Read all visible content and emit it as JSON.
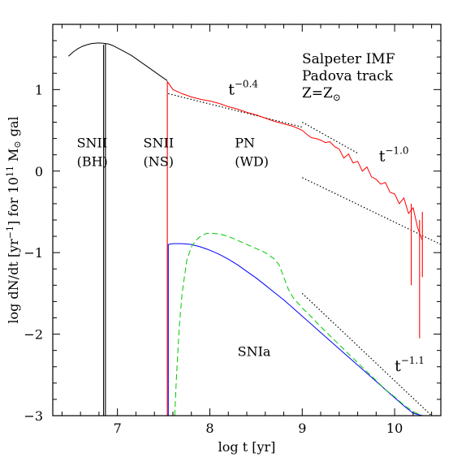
{
  "chart_data": {
    "type": "line",
    "xlabel": "log t [yr]",
    "ylabel_parts": {
      "main": "log dN/dt [yr",
      "exp": "−1",
      "mid": "] for 10",
      "exp2": "11",
      "unit": " M",
      "sun": "⊙",
      "tail": " gal"
    },
    "xlim": [
      6.3,
      10.5
    ],
    "ylim": [
      -3,
      1.8
    ],
    "x_ticks": [
      7,
      8,
      9,
      10
    ],
    "y_ticks": [
      -3,
      -2,
      -1,
      0,
      1
    ],
    "y_tick_labels": [
      "−3",
      "−2",
      "−1",
      "0",
      "1"
    ],
    "notes": [
      "Salpeter IMF",
      "Padova track"
    ],
    "metallicity": {
      "base": "Z=Z",
      "sun": "⊙"
    },
    "region_labels": [
      {
        "line1": "SNII",
        "line2": "(BH)",
        "x": 6.56,
        "y1": 0.29,
        "y2": 0.06
      },
      {
        "line1": "SNII",
        "line2": "(NS)",
        "x": 7.28,
        "y1": 0.29,
        "y2": 0.06
      },
      {
        "line1": "PN",
        "line2": "(WD)",
        "x": 8.27,
        "y1": 0.29,
        "y2": 0.06
      }
    ],
    "powerlaw_labels": [
      {
        "base": "t",
        "exp": "−0.4",
        "x": 8.2,
        "y": 0.94
      },
      {
        "base": "t",
        "exp": "−1.0",
        "x": 9.83,
        "y": 0.12
      },
      {
        "base": "t",
        "exp": "−1.1",
        "x": 10.0,
        "y": -2.45
      }
    ],
    "snia_label": {
      "text": "SNIa",
      "x": 8.3,
      "y": -2.27
    },
    "series": [
      {
        "key": "snii",
        "color": "#000000",
        "style": "solid",
        "x": [
          6.47,
          6.52,
          6.57,
          6.62,
          6.67,
          6.72,
          6.77,
          6.8,
          6.83,
          6.87,
          6.9,
          6.95,
          7.0,
          7.05,
          7.1,
          7.15,
          7.2,
          7.25,
          7.3,
          7.35,
          7.4,
          7.45,
          7.5,
          7.54
        ],
        "y": [
          1.41,
          1.46,
          1.5,
          1.53,
          1.55,
          1.565,
          1.57,
          1.572,
          1.57,
          1.565,
          1.56,
          1.54,
          1.51,
          1.48,
          1.45,
          1.42,
          1.38,
          1.34,
          1.3,
          1.26,
          1.22,
          1.18,
          1.14,
          1.11
        ]
      },
      {
        "key": "pn",
        "color": "#ff0000",
        "style": "solid",
        "x": [
          7.54,
          7.6,
          7.7,
          7.8,
          7.9,
          8.0,
          8.1,
          8.2,
          8.3,
          8.4,
          8.5,
          8.6,
          8.7,
          8.8,
          8.9,
          9.0,
          9.05,
          9.1,
          9.15,
          9.2,
          9.25,
          9.3,
          9.35,
          9.4,
          9.45,
          9.5,
          9.55,
          9.6,
          9.65,
          9.7,
          9.75,
          9.8,
          9.85,
          9.9,
          9.95,
          10.0,
          10.05,
          10.1,
          10.15,
          10.2,
          10.25,
          10.3
        ],
        "y": [
          1.1,
          1.0,
          0.95,
          0.91,
          0.88,
          0.86,
          0.83,
          0.79,
          0.76,
          0.72,
          0.69,
          0.65,
          0.61,
          0.58,
          0.55,
          0.5,
          0.45,
          0.41,
          0.4,
          0.38,
          0.35,
          0.36,
          0.3,
          0.27,
          0.16,
          0.21,
          0.1,
          0.12,
          0.0,
          0.05,
          -0.07,
          -0.1,
          -0.16,
          -0.14,
          -0.26,
          -0.28,
          -0.4,
          -0.33,
          -0.52,
          -0.45,
          -0.7,
          -0.85
        ]
      },
      {
        "key": "snia_blue",
        "color": "#0000ff",
        "style": "solid",
        "x": [
          7.55,
          7.6,
          7.7,
          7.8,
          7.9,
          8.0,
          8.1,
          8.2,
          8.3,
          8.4,
          8.5,
          8.6,
          8.7,
          8.8,
          8.9,
          9.0,
          9.1,
          9.2,
          9.3,
          9.4,
          9.5,
          9.6,
          9.7,
          9.8,
          9.9,
          10.0,
          10.1,
          10.2,
          10.3
        ],
        "y": [
          -0.9,
          -0.89,
          -0.89,
          -0.9,
          -0.93,
          -0.97,
          -1.02,
          -1.08,
          -1.15,
          -1.23,
          -1.31,
          -1.4,
          -1.49,
          -1.58,
          -1.68,
          -1.78,
          -1.88,
          -1.98,
          -2.08,
          -2.18,
          -2.28,
          -2.38,
          -2.48,
          -2.58,
          -2.68,
          -2.78,
          -2.88,
          -2.97,
          -3.0
        ]
      },
      {
        "key": "snia_green",
        "color": "#00c800",
        "style": "dashed",
        "x": [
          7.62,
          7.64,
          7.67,
          7.7,
          7.75,
          7.8,
          7.85,
          7.9,
          7.95,
          8.0,
          8.1,
          8.2,
          8.3,
          8.4,
          8.5,
          8.6,
          8.7,
          8.75,
          8.8,
          8.85,
          8.9,
          9.0,
          9.1,
          9.2,
          9.3,
          9.4,
          9.5,
          9.6,
          9.7,
          9.8,
          9.9,
          10.0,
          10.1,
          10.2,
          10.3
        ],
        "y": [
          -3.0,
          -2.5,
          -1.9,
          -1.5,
          -1.1,
          -0.93,
          -0.85,
          -0.8,
          -0.77,
          -0.76,
          -0.77,
          -0.8,
          -0.85,
          -0.9,
          -0.95,
          -1.0,
          -1.08,
          -1.15,
          -1.3,
          -1.45,
          -1.55,
          -1.68,
          -1.79,
          -1.91,
          -2.02,
          -2.13,
          -2.24,
          -2.35,
          -2.46,
          -2.57,
          -2.68,
          -2.77,
          -2.87,
          -2.95,
          -3.0
        ]
      }
    ],
    "spikes": [
      {
        "x": 6.85,
        "y_top": 1.55,
        "color": "#000000"
      },
      {
        "x": 6.87,
        "y_top": 1.57,
        "color": "#000000"
      },
      {
        "x": 7.54,
        "y_top": 1.1,
        "color": "#ff0000"
      },
      {
        "x": 7.55,
        "y_top": -0.9,
        "color": "#0000ff"
      },
      {
        "x": 10.18,
        "y_top": -0.4,
        "bottom": -1.4,
        "color": "#ff0000"
      },
      {
        "x": 10.27,
        "y_top": -0.6,
        "bottom": -2.05,
        "color": "#ff0000"
      },
      {
        "x": 10.3,
        "y_top": -0.5,
        "bottom": -1.3,
        "color": "#ff0000"
      }
    ],
    "fit_lines": [
      {
        "x": [
          7.55,
          9.0
        ],
        "y": [
          0.95,
          0.54
        ]
      },
      {
        "x": [
          9.0,
          9.6
        ],
        "y": [
          0.6,
          0.22
        ]
      },
      {
        "x": [
          9.0,
          10.5
        ],
        "y": [
          -0.08,
          -0.9
        ]
      },
      {
        "x": [
          9.0,
          10.4
        ],
        "y": [
          -1.5,
          -3.0
        ]
      }
    ]
  }
}
